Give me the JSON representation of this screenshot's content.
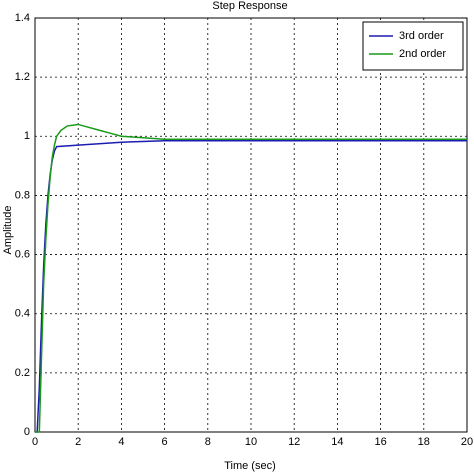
{
  "chart_data": {
    "type": "line",
    "title": "Step Response",
    "x_label": "Time (sec)",
    "y_label": "Amplitude",
    "xlim": [
      0,
      20
    ],
    "ylim": [
      0,
      1.4
    ],
    "xticks": [
      0,
      2,
      4,
      6,
      8,
      10,
      12,
      14,
      16,
      18,
      20
    ],
    "yticks": [
      0,
      0.2,
      0.4,
      0.6,
      0.8,
      1,
      1.2,
      1.4
    ],
    "grid": true,
    "legend": "top-right",
    "series": [
      {
        "name": "3rd order",
        "color": "#1c1cb0",
        "x": [
          0,
          0.1,
          0.2,
          0.3,
          0.4,
          0.5,
          0.6,
          0.7,
          0.8,
          0.9,
          1.0,
          2,
          4,
          6,
          20
        ],
        "values": [
          0,
          0,
          0.15,
          0.37,
          0.56,
          0.7,
          0.8,
          0.87,
          0.92,
          0.95,
          0.965,
          0.97,
          0.98,
          0.985,
          0.985
        ]
      },
      {
        "name": "2nd order",
        "color": "#1a9a1a",
        "x": [
          0,
          0.2,
          0.3,
          0.4,
          0.5,
          0.6,
          0.7,
          0.8,
          0.9,
          1.0,
          1.2,
          1.5,
          2,
          2.5,
          3,
          3.5,
          4,
          5,
          6,
          20
        ],
        "values": [
          0,
          0,
          0.25,
          0.5,
          0.65,
          0.77,
          0.86,
          0.93,
          0.97,
          1.0,
          1.02,
          1.035,
          1.04,
          1.03,
          1.02,
          1.01,
          1.0,
          0.995,
          0.99,
          0.99
        ]
      }
    ]
  }
}
